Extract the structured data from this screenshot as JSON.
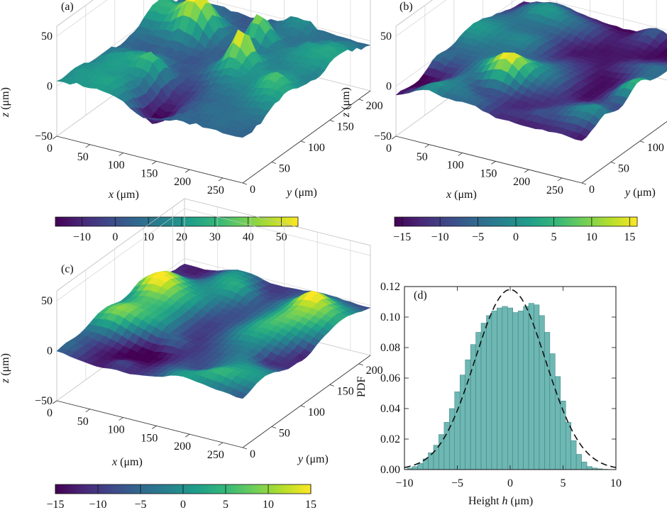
{
  "colors": {
    "viridis": [
      "#440154",
      "#482878",
      "#3e4989",
      "#31688e",
      "#26828e",
      "#1f9e89",
      "#35b779",
      "#6ece58",
      "#b5de2b",
      "#fde725"
    ],
    "hist_fill": "#6fb7b3",
    "hist_edge": "#2f7f7b",
    "fit_line": "#111111"
  },
  "panels": [
    {
      "label": "(a)",
      "surface": {
        "z_label_var": "z",
        "z_label_unit": " (μm)",
        "z_ticks": [
          "50",
          "0",
          "−50"
        ],
        "x_label_var": "x",
        "x_label_unit": " (μm)",
        "x_ticks": [
          "0",
          "50",
          "100",
          "150",
          "200",
          "250"
        ],
        "y_label_var": "y",
        "y_label_unit": " (μm)",
        "y_ticks": [
          "0",
          "50",
          "100",
          "150",
          "200"
        ],
        "x_range": [
          0,
          280
        ],
        "y_range": [
          0,
          220
        ],
        "z_range": [
          -50,
          60
        ],
        "roughness": 1.0
      },
      "colorbar": {
        "ticks": [
          "−10",
          "0",
          "10",
          "20",
          "30",
          "40",
          "50"
        ],
        "tick_values": [
          -10,
          0,
          10,
          20,
          30,
          40,
          50
        ],
        "range": [
          -18,
          55
        ]
      }
    },
    {
      "label": "(b)",
      "surface": {
        "z_label_var": "z",
        "z_label_unit": " (μm)",
        "z_ticks": [
          "50",
          "0",
          "−50"
        ],
        "x_label_var": "x",
        "x_label_unit": " (μm)",
        "x_ticks": [
          "0",
          "50",
          "100",
          "150",
          "200",
          "250"
        ],
        "y_label_var": "y",
        "y_label_unit": " (μm)",
        "y_ticks": [
          "0",
          "50",
          "100",
          "150",
          "200"
        ],
        "x_range": [
          0,
          280
        ],
        "y_range": [
          0,
          220
        ],
        "z_range": [
          -50,
          60
        ],
        "roughness": 0.45
      },
      "colorbar": {
        "ticks": [
          "−15",
          "−10",
          "−5",
          "0",
          "5",
          "10",
          "15"
        ],
        "tick_values": [
          -15,
          -10,
          -5,
          0,
          5,
          10,
          15
        ],
        "range": [
          -16,
          16
        ]
      }
    },
    {
      "label": "(c)",
      "surface": {
        "z_label_var": "z",
        "z_label_unit": " (μm)",
        "z_ticks": [
          "50",
          "0",
          "−50"
        ],
        "x_label_var": "x",
        "x_label_unit": " (μm)",
        "x_ticks": [
          "0",
          "50",
          "100",
          "150",
          "200",
          "250"
        ],
        "y_label_var": "y",
        "y_label_unit": " (μm)",
        "y_ticks": [
          "0",
          "50",
          "100",
          "150",
          "200"
        ],
        "x_range": [
          0,
          280
        ],
        "y_range": [
          0,
          220
        ],
        "z_range": [
          -50,
          60
        ],
        "roughness": 0.3
      },
      "colorbar": {
        "ticks": [
          "−15",
          "−10",
          "−5",
          "0",
          "5",
          "10",
          "15"
        ],
        "tick_values": [
          -15,
          -10,
          -5,
          0,
          5,
          10,
          15
        ],
        "range": [
          -15,
          15
        ]
      }
    }
  ],
  "chart_data": {
    "type": "bar",
    "label": "(d)",
    "xlabel_prefix": "Height ",
    "xlabel_var": "h",
    "xlabel_unit": " (μm)",
    "ylabel": "PDF",
    "xlim": [
      -10,
      10
    ],
    "ylim": [
      0,
      0.12
    ],
    "x_ticks": [
      -10,
      -5,
      0,
      5,
      10
    ],
    "x_tick_labels": [
      "−10",
      "−5",
      "0",
      "5",
      "10"
    ],
    "y_ticks": [
      0,
      0.02,
      0.04,
      0.06,
      0.08,
      0.1,
      0.12
    ],
    "y_tick_labels": [
      "0.00",
      "0.02",
      "0.04",
      "0.06",
      "0.08",
      "0.10",
      "0.12"
    ],
    "series": [
      {
        "type": "histogram",
        "bin_centers": [
          -9.5,
          -9.0,
          -8.5,
          -8.0,
          -7.5,
          -7.0,
          -6.5,
          -6.0,
          -5.5,
          -5.0,
          -4.5,
          -4.0,
          -3.5,
          -3.0,
          -2.5,
          -2.0,
          -1.5,
          -1.0,
          -0.5,
          0.0,
          0.5,
          1.0,
          1.5,
          2.0,
          2.5,
          3.0,
          3.5,
          4.0,
          4.5,
          5.0,
          5.5,
          6.0,
          6.5,
          7.0,
          7.5,
          8.0,
          8.5,
          9.0,
          9.5
        ],
        "values": [
          0.001,
          0.002,
          0.004,
          0.007,
          0.011,
          0.016,
          0.023,
          0.031,
          0.04,
          0.051,
          0.062,
          0.072,
          0.082,
          0.09,
          0.096,
          0.101,
          0.104,
          0.106,
          0.107,
          0.106,
          0.103,
          0.104,
          0.107,
          0.109,
          0.108,
          0.101,
          0.09,
          0.076,
          0.061,
          0.045,
          0.031,
          0.019,
          0.01,
          0.005,
          0.002,
          0.001,
          0.0005,
          0.0002,
          0.0001
        ]
      },
      {
        "type": "line",
        "style": "dashed",
        "description_values": {
          "mean": 0.0,
          "peak": 0.118
        },
        "x": [
          -10,
          -9,
          -8,
          -7,
          -6,
          -5,
          -4,
          -3,
          -2,
          -1,
          0,
          1,
          2,
          3,
          4,
          5,
          6,
          7,
          8,
          9,
          10
        ],
        "y": [
          0.003,
          0.006,
          0.011,
          0.019,
          0.03,
          0.044,
          0.061,
          0.079,
          0.096,
          0.11,
          0.118,
          0.11,
          0.096,
          0.079,
          0.061,
          0.044,
          0.03,
          0.019,
          0.011,
          0.006,
          0.003
        ]
      }
    ]
  }
}
